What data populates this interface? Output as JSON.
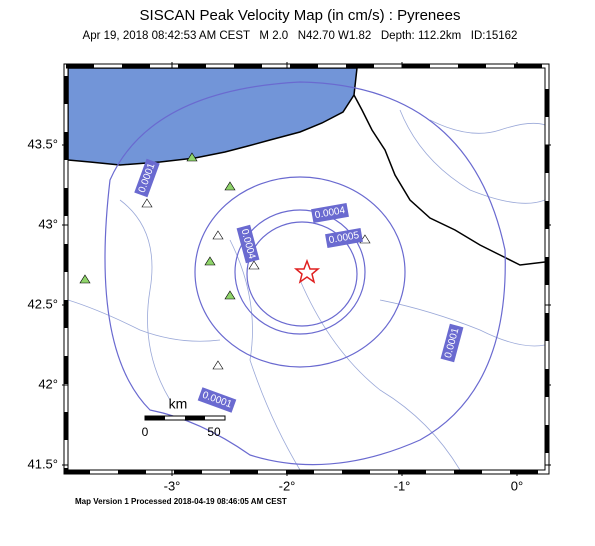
{
  "header": {
    "title": "SISCAN Peak Velocity Map (in cm/s) : Pyrenees",
    "subtitle": "Apr 19, 2018 08:42:53 AM CEST   M 2.0   N42.70 W1.82   Depth: 112.2km   ID:15162"
  },
  "map": {
    "lat_ticks": [
      {
        "value": 43.5,
        "label": "43.5°"
      },
      {
        "value": 43,
        "label": "43°"
      },
      {
        "value": 42.5,
        "label": "42.5°"
      },
      {
        "value": 42,
        "label": "42°"
      },
      {
        "value": 41.5,
        "label": "41.5°"
      }
    ],
    "lon_ticks": [
      {
        "value": -3,
        "label": "-3°"
      },
      {
        "value": -2,
        "label": "-2°"
      },
      {
        "value": -1,
        "label": "-1°"
      },
      {
        "value": 0,
        "label": "0°"
      }
    ],
    "contour_labels": [
      "0.0001",
      "0.0001",
      "0.0001",
      "0.0004",
      "0.0004",
      "0.0005"
    ],
    "scale_bar": {
      "unit": "km",
      "labels": [
        "0",
        "50"
      ]
    }
  },
  "footer": "Map Version 1 Processed 2018-04-19 08:46:05 AM CEST"
}
